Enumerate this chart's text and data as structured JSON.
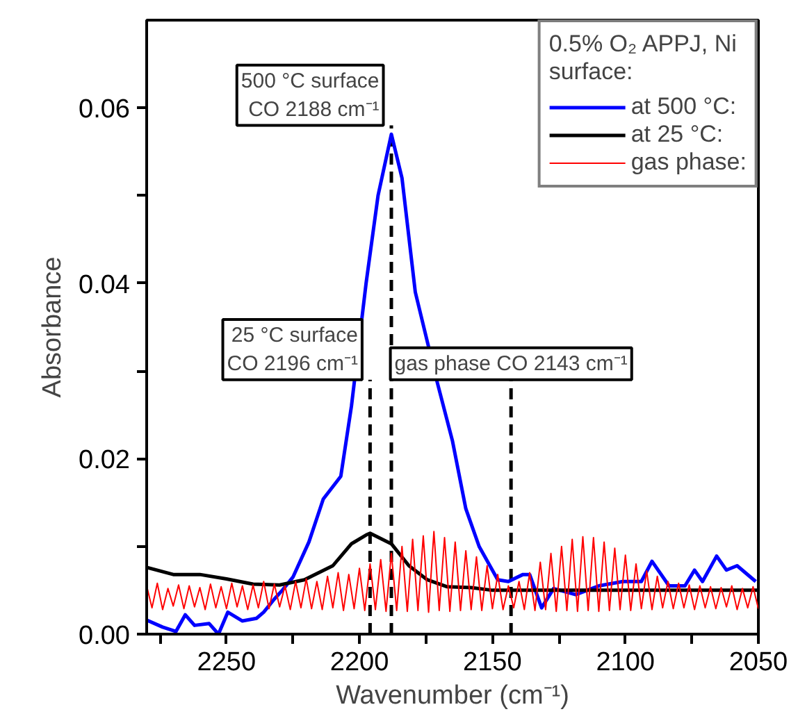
{
  "chart_data": {
    "type": "line",
    "xlabel": "Wavenumber (cm⁻¹)",
    "ylabel": "Absorbance",
    "legend_title": "0.5% O₂ APPJ, Ni\nsurface:",
    "legend": "top right",
    "grid": false,
    "marker": "none",
    "line_style": "solid",
    "xlim": [
      2280,
      2050
    ],
    "ylim": [
      0,
      0.07
    ],
    "xticks": [
      {
        "value": 2275,
        "label": null
      },
      2250,
      {
        "value": 2225,
        "label": null
      },
      2200,
      {
        "value": 2175,
        "label": null
      },
      2150,
      {
        "value": 2125,
        "label": null
      },
      2100,
      {
        "value": 2075,
        "label": null
      },
      2050
    ],
    "yticks": [
      {
        "value": 0,
        "label": "0.00"
      },
      {
        "value": 0.01,
        "label": null
      },
      {
        "value": 0.02,
        "label": "0.02"
      },
      {
        "value": 0.03,
        "label": null
      },
      {
        "value": 0.04,
        "label": "0.04"
      },
      {
        "value": 0.05,
        "label": null
      },
      {
        "value": 0.06,
        "label": "0.06"
      }
    ],
    "ref_lines": [
      {
        "axis": "x",
        "value": 2196,
        "label": "25 °C surface\nCO 2196 cm⁻¹",
        "color": "#000000",
        "line_style": "dashed"
      },
      {
        "axis": "x",
        "value": 2188,
        "label": "500 °C surface\nCO 2188 cm⁻¹",
        "color": "#000000",
        "line_style": "dashed"
      },
      {
        "axis": "x",
        "value": 2143,
        "label": "gas phase CO 2143 cm⁻¹",
        "color": "#000000",
        "line_style": "dashed"
      }
    ],
    "series": [
      {
        "name": "at 500 °C:",
        "color": "#0000ff",
        "x": [
          2280,
          2274,
          2269,
          2265.5,
          2262,
          2256.5,
          2253,
          2249.5,
          2244,
          2238.7,
          2236,
          2232,
          2229,
          2225,
          2219,
          2213.6,
          2207,
          2203,
          2197.5,
          2193,
          2188,
          2184,
          2179,
          2171,
          2165,
          2160,
          2155,
          2148,
          2144,
          2138.5,
          2136,
          2131.5,
          2127,
          2118.7,
          2110,
          2101,
          2094,
          2090,
          2083.6,
          2077.6,
          2074,
          2071,
          2065.7,
          2062,
          2058,
          2051
        ],
        "values": [
          0.0016,
          0.0008,
          0.0003,
          0.0022,
          0.001,
          0.0012,
          0.0,
          0.0025,
          0.0015,
          0.0018,
          0.0025,
          0.004,
          0.005,
          0.0065,
          0.0105,
          0.0154,
          0.018,
          0.026,
          0.04,
          0.05,
          0.057,
          0.052,
          0.039,
          0.029,
          0.022,
          0.0143,
          0.01,
          0.0062,
          0.006,
          0.0068,
          0.0068,
          0.003,
          0.0052,
          0.0045,
          0.0055,
          0.006,
          0.006,
          0.0083,
          0.0055,
          0.0055,
          0.0073,
          0.006,
          0.0089,
          0.0073,
          0.0078,
          0.006
        ]
      },
      {
        "name": "at 25 °C:",
        "color": "#000000",
        "x": [
          2280,
          2270,
          2260,
          2250,
          2240,
          2230,
          2220.7,
          2210,
          2203,
          2197.5,
          2196,
          2188,
          2181.4,
          2174.5,
          2167,
          2158,
          2150,
          2100,
          2050
        ],
        "values": [
          0.0076,
          0.0068,
          0.0068,
          0.0063,
          0.0057,
          0.0056,
          0.0062,
          0.0078,
          0.0103,
          0.0113,
          0.0115,
          0.0103,
          0.0078,
          0.0062,
          0.0054,
          0.0053,
          0.005,
          0.005,
          0.005
        ]
      },
      {
        "name": "gas phase:",
        "color": "#ff0000",
        "x": [
          2280,
          2278,
          2276,
          2274,
          2272,
          2270,
          2268,
          2266,
          2264,
          2262,
          2260,
          2258,
          2256,
          2254,
          2252,
          2250,
          2248,
          2246,
          2244,
          2242,
          2240,
          2238,
          2236,
          2234,
          2232,
          2230,
          2228,
          2226,
          2224,
          2222,
          2220,
          2218,
          2216,
          2214,
          2212,
          2210,
          2208,
          2206,
          2204,
          2202,
          2200,
          2198,
          2196,
          2194,
          2192,
          2190,
          2188,
          2186,
          2184,
          2182,
          2180,
          2178,
          2176,
          2174,
          2172,
          2170,
          2168,
          2166,
          2164,
          2162,
          2160,
          2158,
          2156,
          2154,
          2152,
          2150,
          2148,
          2146,
          2144,
          2142,
          2140,
          2138,
          2136,
          2134,
          2132,
          2130,
          2128,
          2126,
          2124,
          2122,
          2120,
          2118,
          2116,
          2114,
          2112,
          2110,
          2108,
          2106,
          2104,
          2102,
          2100,
          2098,
          2096,
          2094,
          2092,
          2090,
          2088,
          2086,
          2084,
          2082,
          2080,
          2078,
          2076,
          2074,
          2072,
          2070,
          2068,
          2066,
          2064,
          2062,
          2060,
          2058,
          2056,
          2054,
          2052,
          2050
        ],
        "values": [
          0.0055,
          0.003,
          0.0058,
          0.0028,
          0.0052,
          0.0032,
          0.0056,
          0.0029,
          0.0055,
          0.0031,
          0.0053,
          0.0028,
          0.0057,
          0.003,
          0.0054,
          0.0029,
          0.0058,
          0.0031,
          0.0055,
          0.0028,
          0.0056,
          0.003,
          0.006,
          0.0029,
          0.0057,
          0.0031,
          0.0055,
          0.0028,
          0.006,
          0.003,
          0.0063,
          0.0029,
          0.006,
          0.0028,
          0.0066,
          0.003,
          0.007,
          0.0027,
          0.0068,
          0.0029,
          0.0075,
          0.0027,
          0.008,
          0.0028,
          0.0085,
          0.0026,
          0.0092,
          0.0027,
          0.01,
          0.0026,
          0.0108,
          0.0027,
          0.0112,
          0.0025,
          0.0117,
          0.0027,
          0.011,
          0.0026,
          0.0105,
          0.0027,
          0.0095,
          0.0028,
          0.0088,
          0.0027,
          0.0078,
          0.0029,
          0.0068,
          0.0028,
          0.0055,
          0.003,
          0.006,
          0.0028,
          0.007,
          0.0027,
          0.0082,
          0.0028,
          0.0092,
          0.0026,
          0.01,
          0.0027,
          0.0108,
          0.0026,
          0.0111,
          0.0027,
          0.011,
          0.0026,
          0.0105,
          0.0027,
          0.0098,
          0.0028,
          0.009,
          0.0027,
          0.008,
          0.0029,
          0.0072,
          0.0028,
          0.0066,
          0.003,
          0.006,
          0.0029,
          0.0058,
          0.003,
          0.0056,
          0.0028,
          0.0055,
          0.003,
          0.0054,
          0.0029,
          0.0053,
          0.0031,
          0.0055,
          0.0028,
          0.0052,
          0.003,
          0.0054,
          0.0029
        ]
      }
    ]
  }
}
